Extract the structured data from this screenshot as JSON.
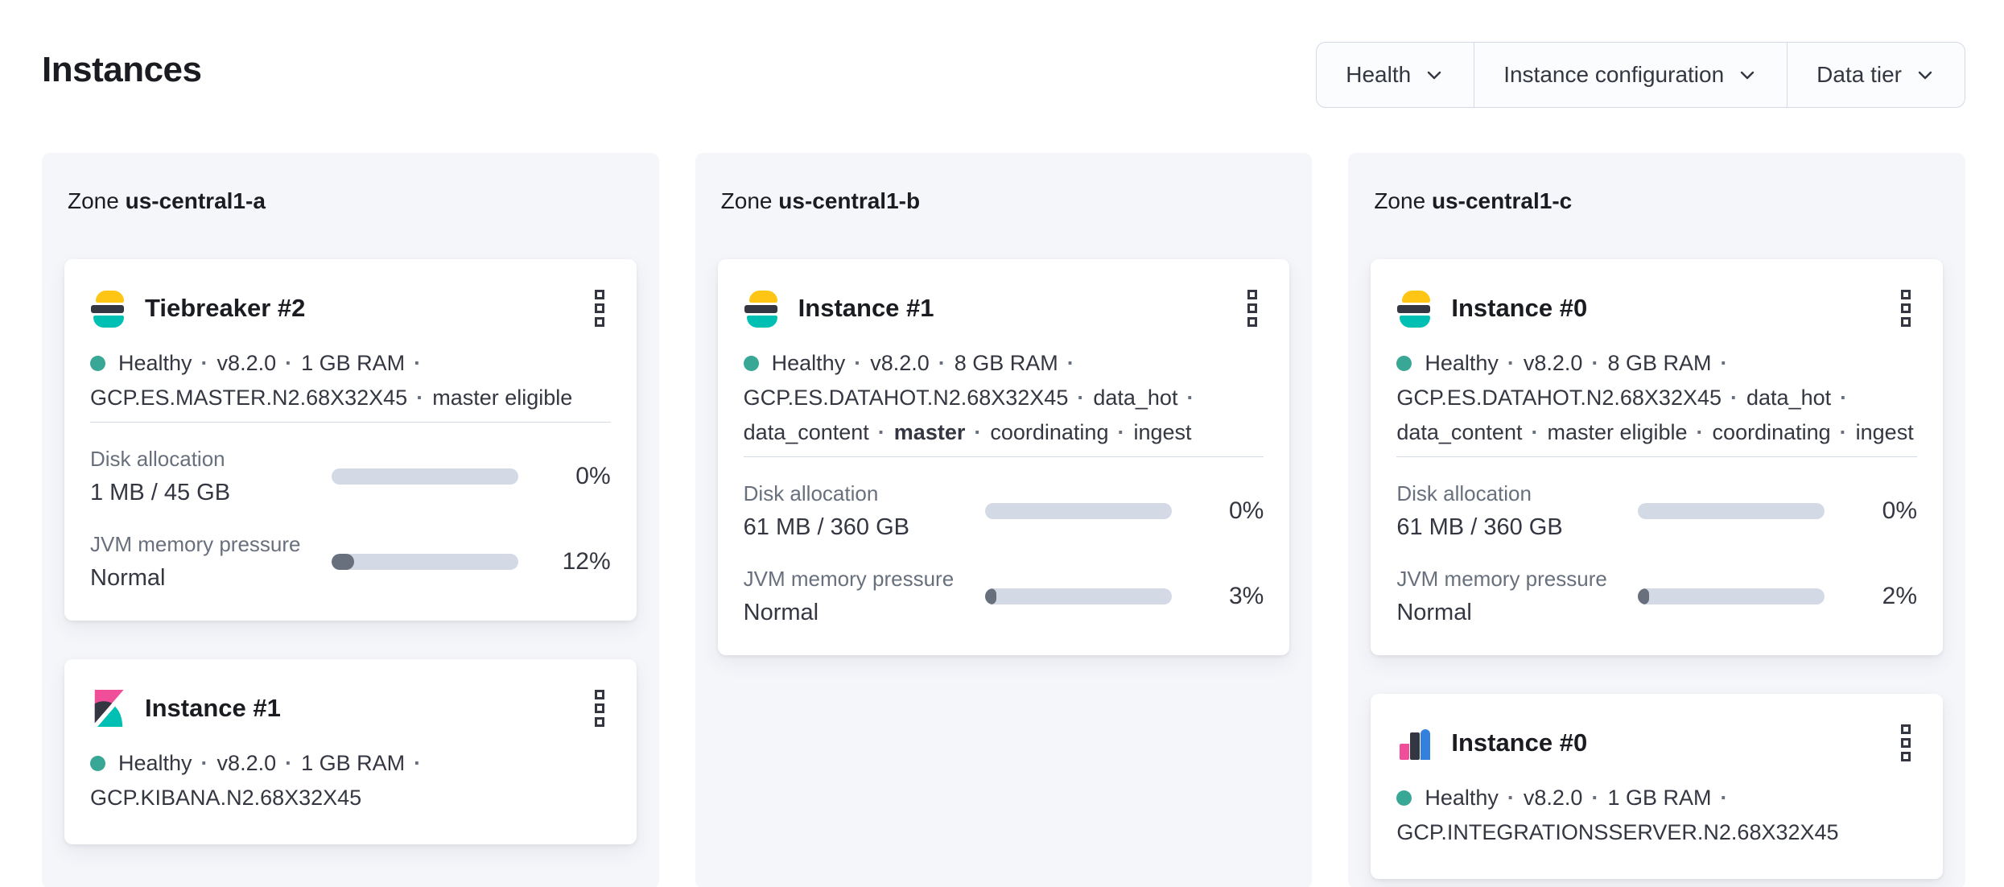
{
  "page": {
    "title": "Instances"
  },
  "filters": {
    "items": [
      {
        "label": "Health"
      },
      {
        "label": "Instance configuration"
      },
      {
        "label": "Data tier"
      }
    ]
  },
  "colors": {
    "healthy_dot": "#38a795",
    "bar_track": "#d3dae6",
    "bar_fill": "#69707d",
    "es_yellow": "#FEC514",
    "es_dark": "#343741",
    "es_teal": "#00BFB3",
    "kibana_pink": "#F04E98",
    "integrations_blue": "#3380DD",
    "panel_bg": "#f4f6fa"
  },
  "zones": [
    {
      "label_prefix": "Zone",
      "name": "us-central1-a",
      "instances": [
        {
          "logo": "elasticsearch",
          "title": "Tiebreaker #2",
          "status_lines": [
            {
              "parts": [
                {
                  "text": "Healthy",
                  "dot": true
                },
                {
                  "text": "v8.2.0"
                },
                {
                  "text": "1 GB RAM"
                }
              ],
              "trailing_sep": true
            },
            {
              "parts": [
                {
                  "text": "GCP.ES.MASTER.N2.68X32X45"
                },
                {
                  "text": "master eligible"
                }
              ],
              "trailing_sep": false
            }
          ],
          "metrics": [
            {
              "label": "Disk allocation",
              "value": "1 MB / 45 GB",
              "percent": 0,
              "percent_label": "0%"
            },
            {
              "label": "JVM memory pressure",
              "value": "Normal",
              "percent": 12,
              "percent_label": "12%"
            }
          ]
        },
        {
          "logo": "kibana",
          "title": "Instance #1",
          "status_lines": [
            {
              "parts": [
                {
                  "text": "Healthy",
                  "dot": true
                },
                {
                  "text": "v8.2.0"
                },
                {
                  "text": "1 GB RAM"
                }
              ],
              "trailing_sep": true
            },
            {
              "parts": [
                {
                  "text": "GCP.KIBANA.N2.68X32X45"
                }
              ],
              "trailing_sep": false
            }
          ],
          "metrics": []
        }
      ]
    },
    {
      "label_prefix": "Zone",
      "name": "us-central1-b",
      "instances": [
        {
          "logo": "elasticsearch",
          "title": "Instance #1",
          "status_lines": [
            {
              "parts": [
                {
                  "text": "Healthy",
                  "dot": true
                },
                {
                  "text": "v8.2.0"
                },
                {
                  "text": "8 GB RAM"
                }
              ],
              "trailing_sep": true
            },
            {
              "parts": [
                {
                  "text": "GCP.ES.DATAHOT.N2.68X32X45"
                },
                {
                  "text": "data_hot"
                }
              ],
              "trailing_sep": true
            },
            {
              "parts": [
                {
                  "text": "data_content"
                },
                {
                  "text": "master",
                  "bold": true
                },
                {
                  "text": "coordinating"
                },
                {
                  "text": "ingest"
                }
              ],
              "trailing_sep": false
            }
          ],
          "metrics": [
            {
              "label": "Disk allocation",
              "value": "61 MB / 360 GB",
              "percent": 0,
              "percent_label": "0%"
            },
            {
              "label": "JVM memory pressure",
              "value": "Normal",
              "percent": 3,
              "percent_label": "3%"
            }
          ]
        }
      ]
    },
    {
      "label_prefix": "Zone",
      "name": "us-central1-c",
      "instances": [
        {
          "logo": "elasticsearch",
          "title": "Instance #0",
          "status_lines": [
            {
              "parts": [
                {
                  "text": "Healthy",
                  "dot": true
                },
                {
                  "text": "v8.2.0"
                },
                {
                  "text": "8 GB RAM"
                }
              ],
              "trailing_sep": true
            },
            {
              "parts": [
                {
                  "text": "GCP.ES.DATAHOT.N2.68X32X45"
                },
                {
                  "text": "data_hot"
                }
              ],
              "trailing_sep": true
            },
            {
              "parts": [
                {
                  "text": "data_content"
                },
                {
                  "text": "master eligible"
                },
                {
                  "text": "coordinating"
                },
                {
                  "text": "ingest"
                }
              ],
              "trailing_sep": false
            }
          ],
          "metrics": [
            {
              "label": "Disk allocation",
              "value": "61 MB / 360 GB",
              "percent": 0,
              "percent_label": "0%"
            },
            {
              "label": "JVM memory pressure",
              "value": "Normal",
              "percent": 2,
              "percent_label": "2%"
            }
          ]
        },
        {
          "logo": "integrations_server",
          "title": "Instance #0",
          "status_lines": [
            {
              "parts": [
                {
                  "text": "Healthy",
                  "dot": true
                },
                {
                  "text": "v8.2.0"
                },
                {
                  "text": "1 GB RAM"
                }
              ],
              "trailing_sep": true
            },
            {
              "parts": [
                {
                  "text": "GCP.INTEGRATIONSSERVER.N2.68X32X45"
                }
              ],
              "trailing_sep": false
            }
          ],
          "metrics": []
        }
      ]
    }
  ]
}
